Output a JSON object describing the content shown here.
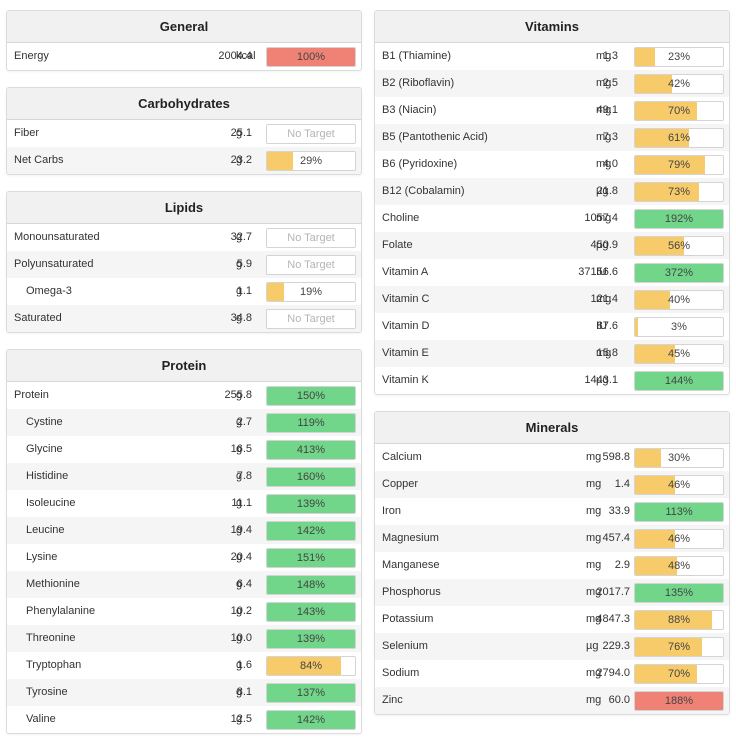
{
  "colors": {
    "red": "#f08275",
    "yellow": "#f7cb6a",
    "green": "#72d68a"
  },
  "general": {
    "title": "General",
    "rows": [
      {
        "name": "Energy",
        "amount": "2004.4",
        "unit": "kcal",
        "pct": "100%",
        "level": 1.0,
        "color": "red"
      }
    ]
  },
  "carbohydrates": {
    "title": "Carbohydrates",
    "rows": [
      {
        "name": "Fiber",
        "amount": "25.1",
        "unit": "g",
        "pct": "No Target",
        "level": 0,
        "color": "none"
      },
      {
        "name": "Net Carbs",
        "amount": "23.2",
        "unit": "g",
        "pct": "29%",
        "level": 0.29,
        "color": "yellow"
      }
    ]
  },
  "lipids": {
    "title": "Lipids",
    "rows": [
      {
        "name": "Monounsaturated",
        "amount": "32.7",
        "unit": "g",
        "pct": "No Target",
        "level": 0,
        "color": "none"
      },
      {
        "name": "Polyunsaturated",
        "amount": "5.9",
        "unit": "g",
        "pct": "No Target",
        "level": 0,
        "color": "none"
      },
      {
        "name": "Omega-3",
        "amount": "1.1",
        "unit": "g",
        "pct": "19%",
        "level": 0.19,
        "color": "yellow",
        "indent": true
      },
      {
        "name": "Saturated",
        "amount": "34.8",
        "unit": "g",
        "pct": "No Target",
        "level": 0,
        "color": "none"
      }
    ]
  },
  "protein": {
    "title": "Protein",
    "rows": [
      {
        "name": "Protein",
        "amount": "255.8",
        "unit": "g",
        "pct": "150%",
        "level": 1.0,
        "color": "green"
      },
      {
        "name": "Cystine",
        "amount": "2.7",
        "unit": "g",
        "pct": "119%",
        "level": 1.0,
        "color": "green",
        "indent": true
      },
      {
        "name": "Glycine",
        "amount": "16.5",
        "unit": "g",
        "pct": "413%",
        "level": 1.0,
        "color": "green",
        "indent": true
      },
      {
        "name": "Histidine",
        "amount": "7.8",
        "unit": "g",
        "pct": "160%",
        "level": 1.0,
        "color": "green",
        "indent": true
      },
      {
        "name": "Isoleucine",
        "amount": "11.1",
        "unit": "g",
        "pct": "139%",
        "level": 1.0,
        "color": "green",
        "indent": true
      },
      {
        "name": "Leucine",
        "amount": "19.4",
        "unit": "g",
        "pct": "142%",
        "level": 1.0,
        "color": "green",
        "indent": true
      },
      {
        "name": "Lysine",
        "amount": "20.4",
        "unit": "g",
        "pct": "151%",
        "level": 1.0,
        "color": "green",
        "indent": true
      },
      {
        "name": "Methionine",
        "amount": "6.4",
        "unit": "g",
        "pct": "148%",
        "level": 1.0,
        "color": "green",
        "indent": true
      },
      {
        "name": "Phenylalanine",
        "amount": "10.2",
        "unit": "g",
        "pct": "143%",
        "level": 1.0,
        "color": "green",
        "indent": true
      },
      {
        "name": "Threonine",
        "amount": "10.0",
        "unit": "g",
        "pct": "139%",
        "level": 1.0,
        "color": "green",
        "indent": true
      },
      {
        "name": "Tryptophan",
        "amount": "1.6",
        "unit": "g",
        "pct": "84%",
        "level": 0.84,
        "color": "yellow",
        "indent": true
      },
      {
        "name": "Tyrosine",
        "amount": "8.1",
        "unit": "g",
        "pct": "137%",
        "level": 1.0,
        "color": "green",
        "indent": true
      },
      {
        "name": "Valine",
        "amount": "12.5",
        "unit": "g",
        "pct": "142%",
        "level": 1.0,
        "color": "green",
        "indent": true
      }
    ]
  },
  "vitamins": {
    "title": "Vitamins",
    "rows": [
      {
        "name": "B1 (Thiamine)",
        "amount": "1.3",
        "unit": "mg",
        "pct": "23%",
        "level": 0.23,
        "color": "yellow"
      },
      {
        "name": "B2 (Riboflavin)",
        "amount": "2.5",
        "unit": "mg",
        "pct": "42%",
        "level": 0.42,
        "color": "yellow"
      },
      {
        "name": "B3 (Niacin)",
        "amount": "49.1",
        "unit": "mg",
        "pct": "70%",
        "level": 0.7,
        "color": "yellow"
      },
      {
        "name": "B5 (Pantothenic Acid)",
        "amount": "7.3",
        "unit": "mg",
        "pct": "61%",
        "level": 0.61,
        "color": "yellow"
      },
      {
        "name": "B6 (Pyridoxine)",
        "amount": "4.0",
        "unit": "mg",
        "pct": "79%",
        "level": 0.79,
        "color": "yellow"
      },
      {
        "name": "B12 (Cobalamin)",
        "amount": "21.8",
        "unit": "µg",
        "pct": "73%",
        "level": 0.73,
        "color": "yellow"
      },
      {
        "name": "Choline",
        "amount": "1057.4",
        "unit": "mg",
        "pct": "192%",
        "level": 1.0,
        "color": "green"
      },
      {
        "name": "Folate",
        "amount": "450.9",
        "unit": "µg",
        "pct": "56%",
        "level": 0.56,
        "color": "yellow"
      },
      {
        "name": "Vitamin A",
        "amount": "37156.6",
        "unit": "IU",
        "pct": "372%",
        "level": 1.0,
        "color": "green"
      },
      {
        "name": "Vitamin C",
        "amount": "121.4",
        "unit": "mg",
        "pct": "40%",
        "level": 0.4,
        "color": "yellow"
      },
      {
        "name": "Vitamin D",
        "amount": "87.6",
        "unit": "IU",
        "pct": "3%",
        "level": 0.03,
        "color": "yellow"
      },
      {
        "name": "Vitamin E",
        "amount": "15.8",
        "unit": "mg",
        "pct": "45%",
        "level": 0.45,
        "color": "yellow"
      },
      {
        "name": "Vitamin K",
        "amount": "1443.1",
        "unit": "µg",
        "pct": "144%",
        "level": 1.0,
        "color": "green"
      }
    ]
  },
  "minerals": {
    "title": "Minerals",
    "rows": [
      {
        "name": "Calcium",
        "amount": "598.8",
        "unit": "mg",
        "pct": "30%",
        "level": 0.3,
        "color": "yellow"
      },
      {
        "name": "Copper",
        "amount": "1.4",
        "unit": "mg",
        "pct": "46%",
        "level": 0.46,
        "color": "yellow"
      },
      {
        "name": "Iron",
        "amount": "33.9",
        "unit": "mg",
        "pct": "113%",
        "level": 1.0,
        "color": "green"
      },
      {
        "name": "Magnesium",
        "amount": "457.4",
        "unit": "mg",
        "pct": "46%",
        "level": 0.46,
        "color": "yellow"
      },
      {
        "name": "Manganese",
        "amount": "2.9",
        "unit": "mg",
        "pct": "48%",
        "level": 0.48,
        "color": "yellow"
      },
      {
        "name": "Phosphorus",
        "amount": "2017.7",
        "unit": "mg",
        "pct": "135%",
        "level": 1.0,
        "color": "green"
      },
      {
        "name": "Potassium",
        "amount": "4847.3",
        "unit": "mg",
        "pct": "88%",
        "level": 0.88,
        "color": "yellow"
      },
      {
        "name": "Selenium",
        "amount": "229.3",
        "unit": "µg",
        "pct": "76%",
        "level": 0.76,
        "color": "yellow"
      },
      {
        "name": "Sodium",
        "amount": "2794.0",
        "unit": "mg",
        "pct": "70%",
        "level": 0.7,
        "color": "yellow"
      },
      {
        "name": "Zinc",
        "amount": "60.0",
        "unit": "mg",
        "pct": "188%",
        "level": 1.0,
        "color": "red"
      }
    ]
  }
}
